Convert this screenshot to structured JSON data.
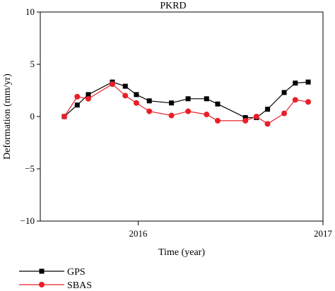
{
  "chart_data": {
    "type": "line",
    "title": "PKRD",
    "xlabel": "Time (year)",
    "ylabel": "Deformation (mm/yr)",
    "xlim": [
      2015.47,
      2017.0
    ],
    "ylim": [
      -10,
      10
    ],
    "x_ticks": [
      2016,
      2017
    ],
    "x_tick_labels": [
      "2016",
      "2017"
    ],
    "y_ticks": [
      -10,
      -5,
      0,
      5,
      10
    ],
    "y_tick_labels": [
      "−10",
      "−5",
      "0",
      "5",
      "10"
    ],
    "grid": false,
    "legend_position": "bottom-left, below plot",
    "series": [
      {
        "name": "GPS",
        "color": "#000000",
        "marker": "square",
        "x": [
          2015.6,
          2015.67,
          2015.73,
          2015.86,
          2015.93,
          2015.99,
          2016.06,
          2016.18,
          2016.27,
          2016.37,
          2016.43,
          2016.58,
          2016.64,
          2016.7,
          2016.79,
          2016.85,
          2016.92
        ],
        "y": [
          0.0,
          1.1,
          2.1,
          3.3,
          2.9,
          2.1,
          1.5,
          1.3,
          1.7,
          1.7,
          1.2,
          -0.1,
          -0.1,
          0.7,
          2.3,
          3.2,
          3.3
        ]
      },
      {
        "name": "SBAS",
        "color": "#e8202a",
        "marker": "circle",
        "x": [
          2015.6,
          2015.67,
          2015.73,
          2015.86,
          2015.93,
          2015.99,
          2016.06,
          2016.18,
          2016.27,
          2016.37,
          2016.43,
          2016.58,
          2016.64,
          2016.7,
          2016.79,
          2016.85,
          2016.92
        ],
        "y": [
          0.0,
          1.9,
          1.7,
          3.1,
          2.0,
          1.3,
          0.5,
          0.1,
          0.5,
          0.2,
          -0.4,
          -0.4,
          0.0,
          -0.7,
          0.3,
          1.6,
          1.4
        ]
      }
    ]
  }
}
